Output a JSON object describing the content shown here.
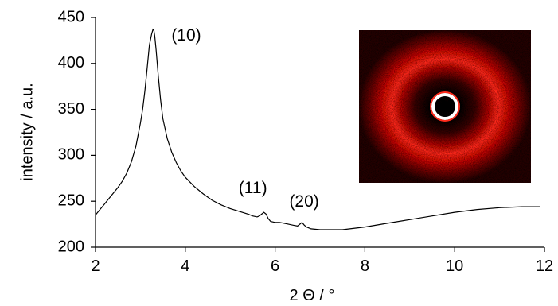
{
  "chart_data": {
    "type": "line",
    "title": "",
    "xlabel": "2 Θ / °",
    "ylabel": "intensity / a.u.",
    "xlim": [
      2,
      12
    ],
    "ylim": [
      200,
      450
    ],
    "x_ticks": [
      2,
      4,
      6,
      8,
      10,
      12
    ],
    "y_ticks": [
      200,
      250,
      300,
      350,
      400,
      450
    ],
    "grid": false,
    "legend": "none",
    "series": [
      {
        "x": [
          2.0,
          2.1,
          2.2,
          2.3,
          2.4,
          2.5,
          2.6,
          2.7,
          2.8,
          2.9,
          3.0,
          3.05,
          3.1,
          3.15,
          3.2,
          3.25,
          3.28,
          3.3,
          3.32,
          3.35,
          3.4,
          3.45,
          3.5,
          3.6,
          3.7,
          3.8,
          3.9,
          4.0,
          4.2,
          4.4,
          4.6,
          4.8,
          5.0,
          5.2,
          5.4,
          5.5,
          5.6,
          5.65,
          5.7,
          5.75,
          5.8,
          5.85,
          5.9,
          6.0,
          6.1,
          6.2,
          6.3,
          6.4,
          6.5,
          6.55,
          6.6,
          6.65,
          6.7,
          6.8,
          7.0,
          7.2,
          7.5,
          8.0,
          8.5,
          9.0,
          9.5,
          10.0,
          10.5,
          11.0,
          11.5,
          11.9
        ],
        "y": [
          235,
          241,
          247,
          253,
          259,
          265,
          272,
          281,
          293,
          310,
          335,
          350,
          370,
          395,
          420,
          432,
          437,
          436,
          430,
          415,
          385,
          360,
          340,
          318,
          303,
          292,
          283,
          276,
          266,
          258,
          251,
          246,
          242,
          239,
          236,
          234,
          233,
          234,
          236,
          238,
          236,
          231,
          228,
          227,
          227,
          226,
          225,
          224,
          223,
          225,
          227,
          224,
          222,
          220,
          219,
          219,
          219,
          222,
          226,
          230,
          234,
          238,
          241,
          243,
          244,
          244
        ]
      }
    ],
    "annotations": [
      {
        "text": "(10)",
        "x": 3.3,
        "y": 437
      },
      {
        "text": "(11)",
        "x": 5.72,
        "y": 238
      },
      {
        "text": "(20)",
        "x": 6.6,
        "y": 227
      }
    ],
    "inset": {
      "type": "2D diffraction pattern image",
      "colors": {
        "background": "#000000",
        "ring": "#ff1a14",
        "center_ring": "#ffffff"
      }
    }
  }
}
